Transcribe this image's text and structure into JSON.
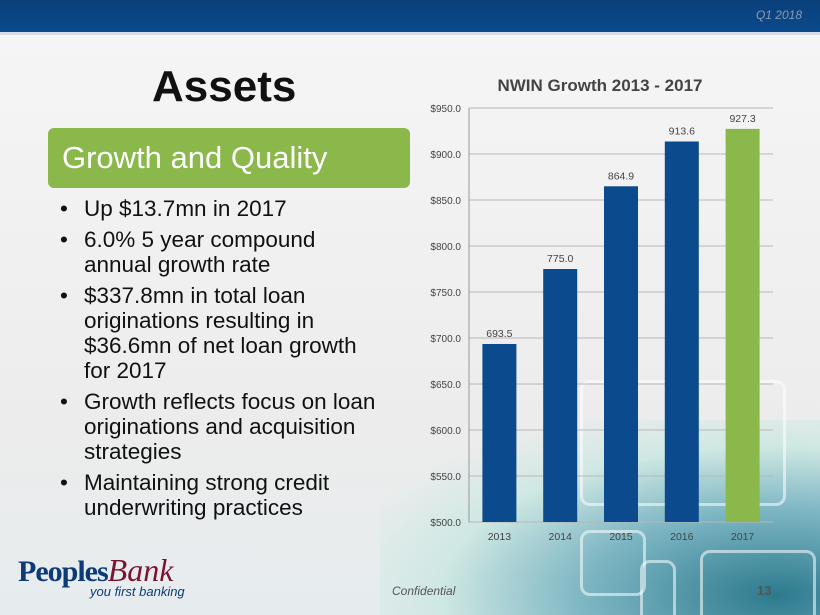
{
  "header": {
    "period": "Q1 2018"
  },
  "slide": {
    "title": "Assets",
    "subtitle": "Growth and Quality",
    "bullets": [
      "Up $13.7mn in 2017",
      "6.0% 5 year compound annual growth rate",
      "$337.8mn in total loan originations resulting in $36.6mn of net loan growth for 2017",
      "Growth reflects focus on loan originations and acquisition strategies",
      "Maintaining strong credit underwriting practices"
    ]
  },
  "footer": {
    "logo_main": "Peoples",
    "logo_script": "Bank",
    "tagline": "you first banking",
    "confidential": "Confidential",
    "page": "13"
  },
  "chart_data": {
    "type": "bar",
    "title": "NWIN Growth 2013 - 2017",
    "categories": [
      "2013",
      "2014",
      "2015",
      "2016",
      "2017"
    ],
    "values": [
      693.5,
      775.0,
      864.9,
      913.6,
      927.3
    ],
    "labels": [
      "693.5",
      "775.0",
      "864.9",
      "913.6",
      "927.3"
    ],
    "colors": [
      "#0b4a8c",
      "#0b4a8c",
      "#0b4a8c",
      "#0b4a8c",
      "#8ab84a"
    ],
    "ylim": [
      500,
      950
    ],
    "yticks": [
      "$500.0",
      "$550.0",
      "$600.0",
      "$650.0",
      "$700.0",
      "$750.0",
      "$800.0",
      "$850.0",
      "$900.0",
      "$950.0"
    ],
    "grid": true
  }
}
